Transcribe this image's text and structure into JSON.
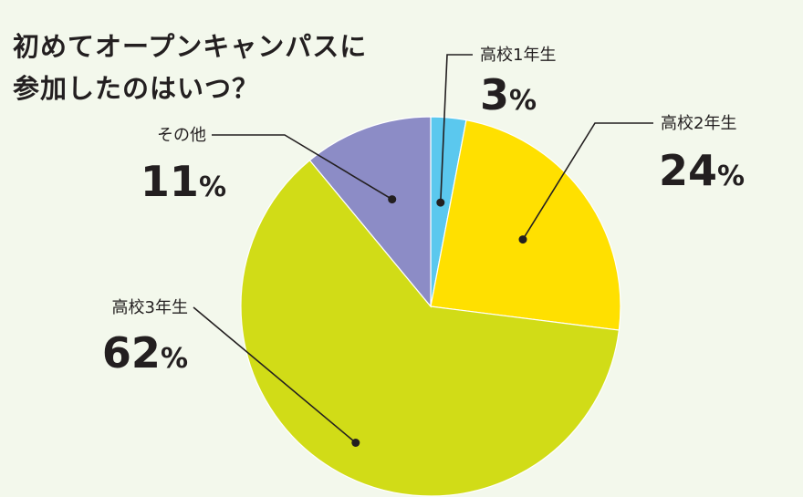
{
  "title_line1": "初めてオープンキャンパスに",
  "title_line2": "参加したのはいつ？",
  "chart_data": {
    "type": "pie",
    "title": "初めてオープンキャンパスに参加したのはいつ？",
    "slices": [
      {
        "label": "高校1年生",
        "value": 3,
        "display": "3",
        "unit": "%",
        "color": "#5bc8ee"
      },
      {
        "label": "高校2年生",
        "value": 24,
        "display": "24",
        "unit": "%",
        "color": "#ffe000"
      },
      {
        "label": "高校3年生",
        "value": 62,
        "display": "62",
        "unit": "%",
        "color": "#d1dc17"
      },
      {
        "label": "その他",
        "value": 11,
        "display": "11",
        "unit": "%",
        "color": "#8c8cc6"
      }
    ],
    "start": "12 o'clock, clockwise"
  }
}
